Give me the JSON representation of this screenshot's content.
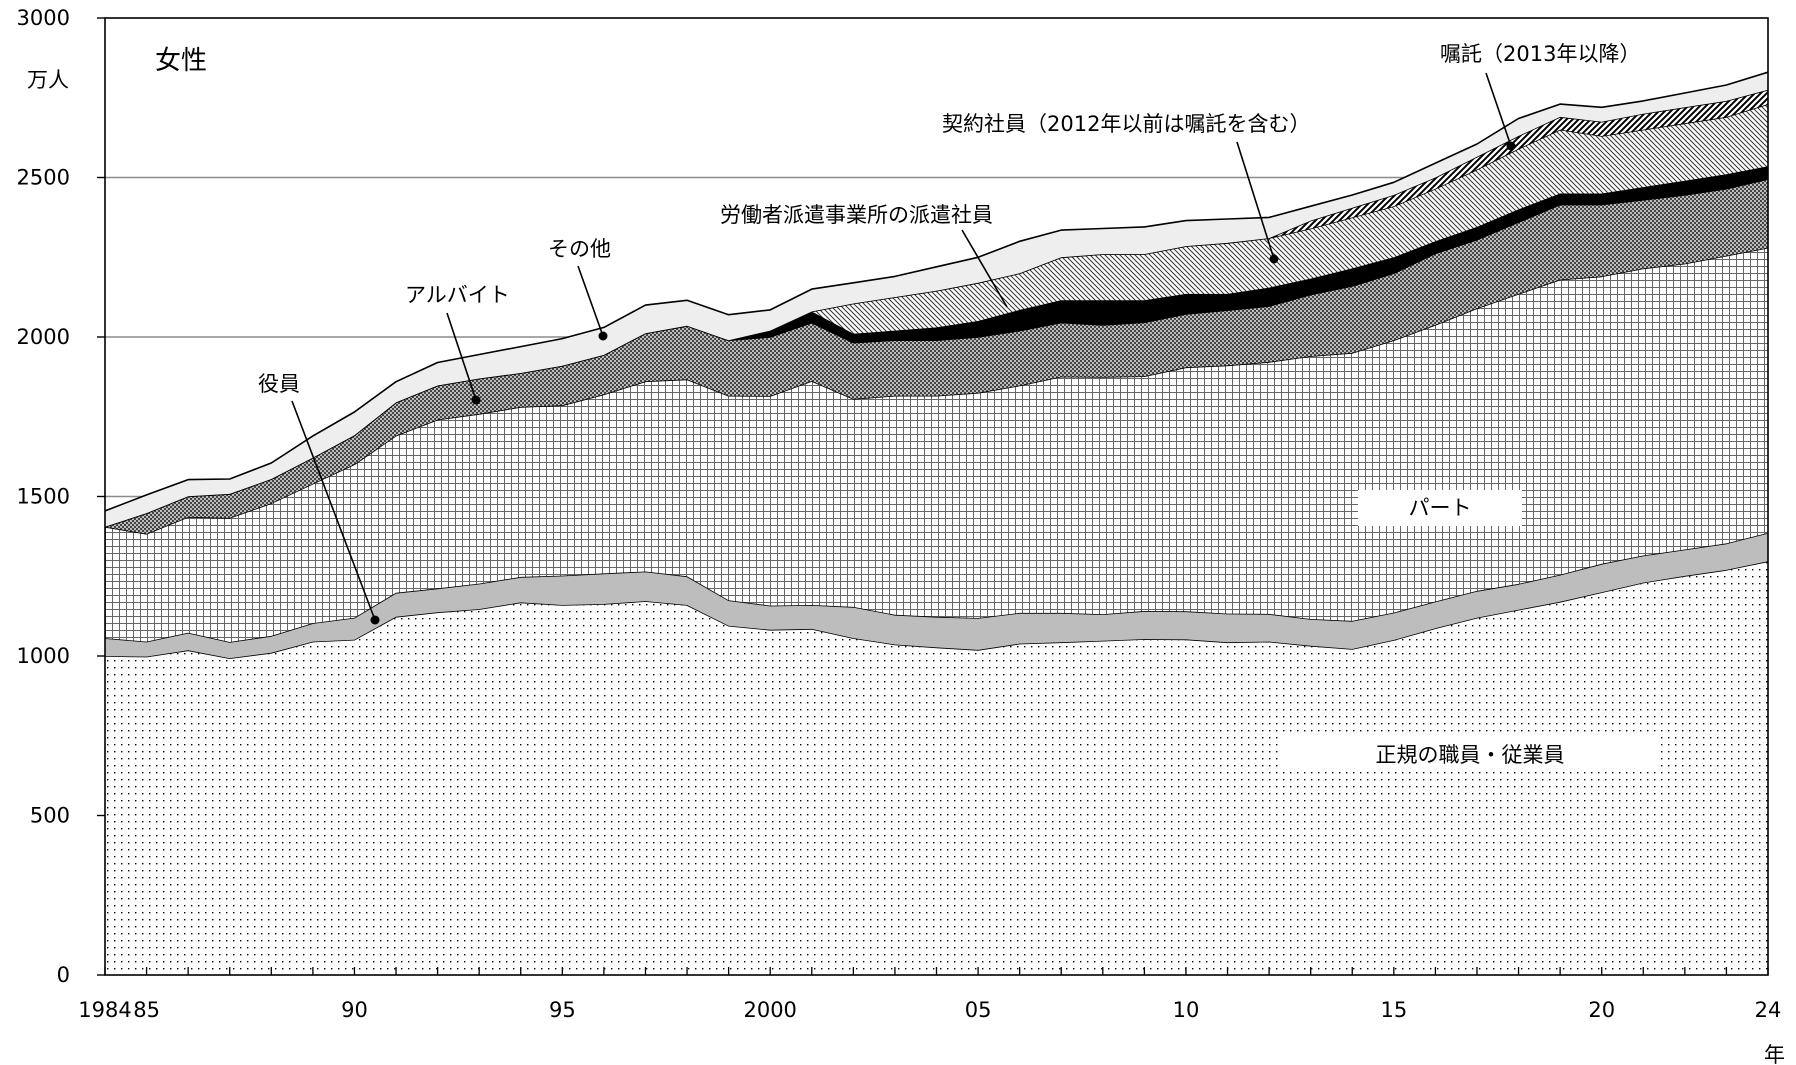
{
  "chart_data": {
    "type": "area",
    "title": "",
    "panel_label": "女性",
    "ylabel": "万人",
    "xlabel": "年",
    "ylim": [
      0,
      3000
    ],
    "yticks": [
      0,
      500,
      1000,
      1500,
      2000,
      2500,
      3000
    ],
    "ytick_labels": [
      "0",
      "500",
      "1000",
      "1500",
      "2000",
      "2500",
      "3000"
    ],
    "xlim": [
      1984,
      2024
    ],
    "xticks": [
      1984,
      1985,
      1990,
      1995,
      2000,
      2005,
      2010,
      2015,
      2020,
      2024
    ],
    "xtick_labels": [
      "1984",
      "85",
      "90",
      "95",
      "2000",
      "05",
      "10",
      "15",
      "20",
      "24"
    ],
    "grid": "horizontal",
    "x": [
      1984,
      1985,
      1986,
      1987,
      1988,
      1989,
      1990,
      1991,
      1992,
      1993,
      1994,
      1995,
      1996,
      1997,
      1998,
      1999,
      2000,
      2001,
      2002,
      2003,
      2004,
      2005,
      2006,
      2007,
      2008,
      2009,
      2010,
      2011,
      2012,
      2013,
      2014,
      2015,
      2016,
      2017,
      2018,
      2019,
      2020,
      2021,
      2022,
      2023,
      2024
    ],
    "series": [
      {
        "name": "正規の職員・従業員",
        "pattern": "dots",
        "cumulative": [
          1000,
          998,
          1018,
          993,
          1010,
          1045,
          1051,
          1123,
          1137,
          1147,
          1168,
          1160,
          1163,
          1172,
          1160,
          1095,
          1082,
          1085,
          1056,
          1036,
          1027,
          1019,
          1039,
          1043,
          1048,
          1053,
          1052,
          1043,
          1045,
          1032,
          1022,
          1050,
          1087,
          1120,
          1145,
          1170,
          1200,
          1230,
          1251,
          1270,
          1297
        ]
      },
      {
        "name": "役員",
        "pattern": "gray",
        "cumulative": [
          1056,
          1045,
          1073,
          1044,
          1063,
          1103,
          1120,
          1198,
          1212,
          1227,
          1248,
          1252,
          1259,
          1265,
          1250,
          1175,
          1158,
          1160,
          1154,
          1129,
          1123,
          1119,
          1135,
          1135,
          1131,
          1141,
          1140,
          1133,
          1132,
          1116,
          1110,
          1136,
          1171,
          1204,
          1226,
          1255,
          1289,
          1315,
          1334,
          1353,
          1386
        ]
      },
      {
        "name": "パート",
        "pattern": "grid",
        "cumulative": [
          1405,
          1383,
          1436,
          1433,
          1479,
          1540,
          1601,
          1691,
          1741,
          1759,
          1781,
          1786,
          1820,
          1861,
          1867,
          1816,
          1815,
          1862,
          1806,
          1816,
          1816,
          1825,
          1848,
          1876,
          1875,
          1877,
          1905,
          1911,
          1922,
          1940,
          1950,
          1990,
          2038,
          2090,
          2135,
          2180,
          2190,
          2215,
          2230,
          2255,
          2280
        ]
      },
      {
        "name": "アルバイト",
        "pattern": "dense-dots",
        "cumulative": [
          1405,
          1448,
          1501,
          1508,
          1555,
          1622,
          1692,
          1795,
          1848,
          1870,
          1887,
          1910,
          1944,
          2012,
          2035,
          1990,
          2000,
          2045,
          1982,
          1990,
          1990,
          2000,
          2020,
          2045,
          2038,
          2046,
          2072,
          2084,
          2097,
          2133,
          2160,
          2200,
          2262,
          2305,
          2360,
          2415,
          2415,
          2430,
          2445,
          2465,
          2495
        ]
      },
      {
        "name": "労働者派遣事業所の派遣社員",
        "pattern": "black",
        "cumulative": [
          1405,
          1448,
          1501,
          1508,
          1555,
          1622,
          1692,
          1795,
          1848,
          1870,
          1887,
          1910,
          1944,
          2012,
          2035,
          1990,
          2020,
          2080,
          2010,
          2020,
          2030,
          2050,
          2085,
          2115,
          2115,
          2115,
          2135,
          2135,
          2155,
          2183,
          2215,
          2250,
          2300,
          2345,
          2400,
          2450,
          2450,
          2470,
          2490,
          2510,
          2535
        ]
      },
      {
        "name": "契約社員（2012年以前は嘱託を含む）",
        "pattern": "diag-fine",
        "cumulative": [
          1405,
          1448,
          1501,
          1508,
          1555,
          1622,
          1692,
          1795,
          1848,
          1870,
          1887,
          1910,
          1944,
          2012,
          2035,
          1990,
          2020,
          2080,
          2105,
          2125,
          2145,
          2170,
          2200,
          2250,
          2260,
          2260,
          2285,
          2295,
          2310,
          2340,
          2375,
          2410,
          2465,
          2525,
          2590,
          2650,
          2630,
          2650,
          2670,
          2690,
          2730
        ]
      },
      {
        "name": "嘱託（2013年以降）",
        "pattern": "diag-bold",
        "cumulative": [
          1405,
          1448,
          1501,
          1508,
          1555,
          1622,
          1692,
          1795,
          1848,
          1870,
          1887,
          1910,
          1944,
          2012,
          2035,
          1990,
          2020,
          2080,
          2105,
          2125,
          2145,
          2170,
          2200,
          2250,
          2260,
          2260,
          2285,
          2295,
          2310,
          2365,
          2405,
          2445,
          2500,
          2565,
          2630,
          2690,
          2675,
          2700,
          2720,
          2740,
          2775
        ]
      },
      {
        "name": "その他",
        "pattern": "light",
        "cumulative": [
          1455,
          1505,
          1553,
          1555,
          1605,
          1690,
          1765,
          1860,
          1920,
          1945,
          1970,
          1995,
          2030,
          2100,
          2115,
          2070,
          2085,
          2150,
          2170,
          2190,
          2220,
          2250,
          2300,
          2335,
          2340,
          2345,
          2365,
          2370,
          2375,
          2410,
          2445,
          2485,
          2545,
          2605,
          2685,
          2730,
          2720,
          2740,
          2765,
          2790,
          2830
        ]
      }
    ],
    "labels": {
      "yaku": "役員",
      "arubaito": "アルバイト",
      "sonota": "その他",
      "haken": "労働者派遣事業所の派遣社員",
      "keiyaku": "契約社員（2012年以前は嘱託を含む）",
      "shokutaku": "嘱託（2013年以降）",
      "part": "パート",
      "seiki": "正規の職員・従業員"
    }
  }
}
